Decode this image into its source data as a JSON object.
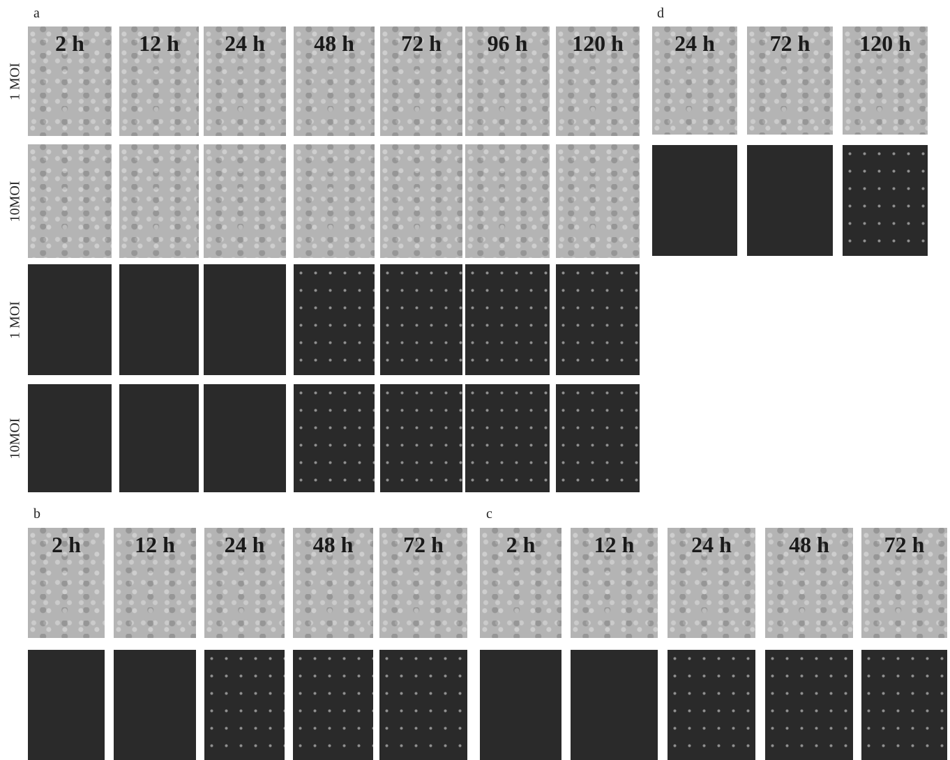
{
  "panels": {
    "a": {
      "label": "a",
      "row_labels": [
        "1 MOI",
        "10MOI",
        "1 MOI",
        "10MOI"
      ],
      "columns": [
        "2 h",
        "12 h",
        "24 h",
        "48 h",
        "72 h",
        "96 h",
        "120 h"
      ]
    },
    "b": {
      "label": "b",
      "columns": [
        "2 h",
        "12 h",
        "24 h",
        "48 h",
        "72 h"
      ]
    },
    "c": {
      "label": "c",
      "columns": [
        "2 h",
        "12 h",
        "24 h",
        "48 h",
        "72 h"
      ]
    },
    "d": {
      "label": "d",
      "columns": [
        "24 h",
        "72 h",
        "120 h"
      ]
    }
  }
}
